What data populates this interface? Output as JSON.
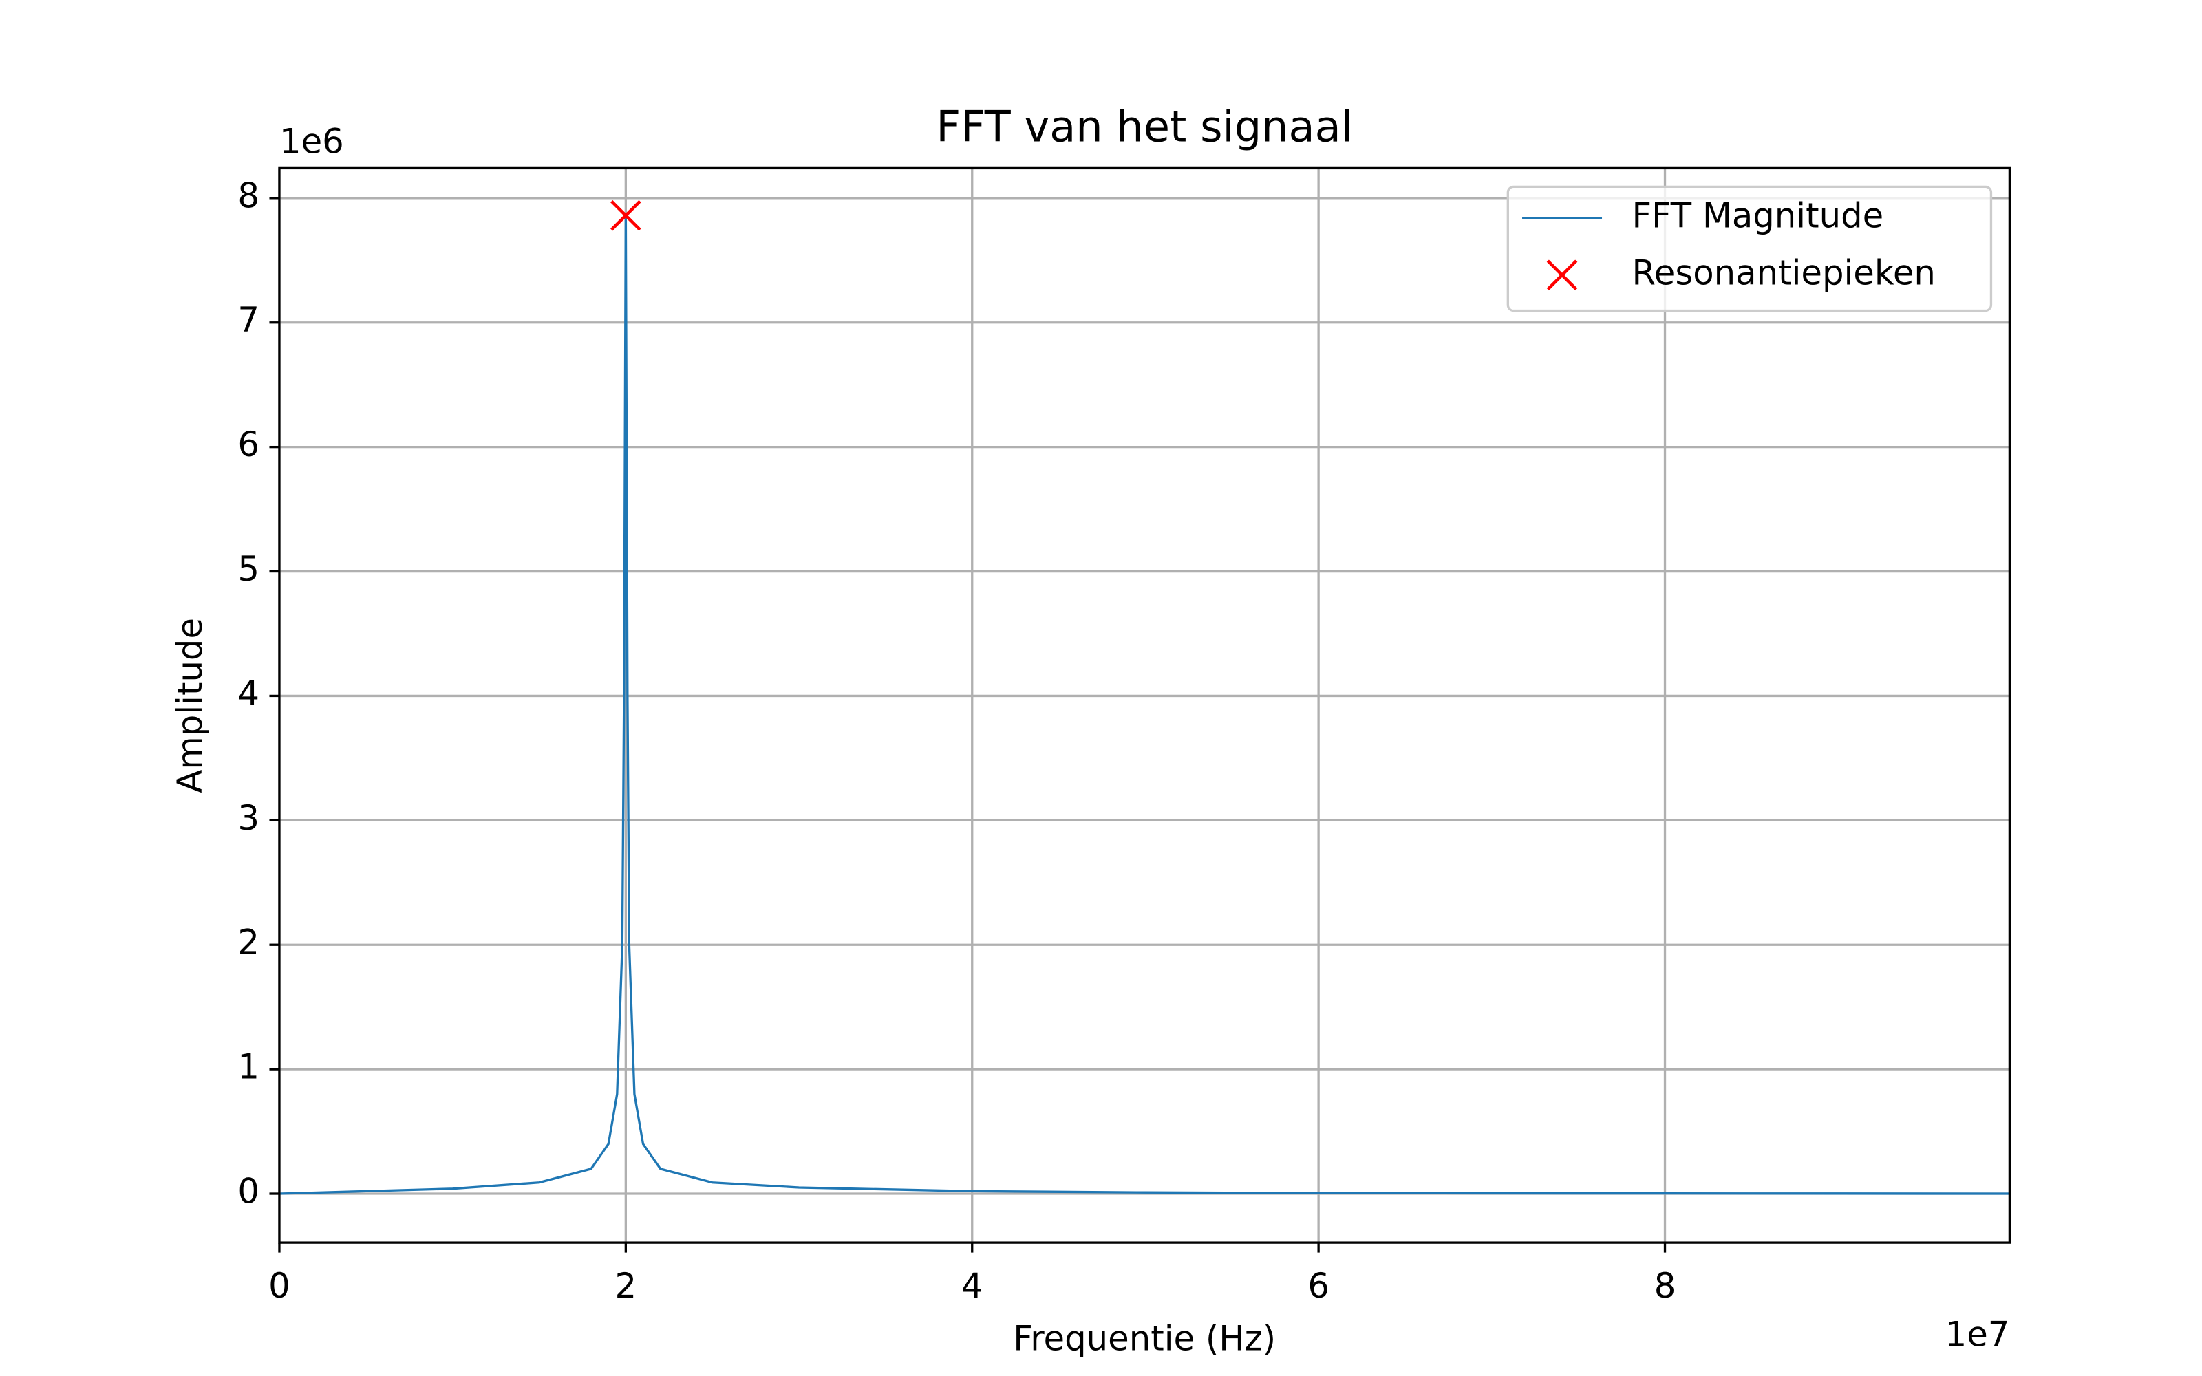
{
  "chart_data": {
    "type": "line",
    "title": "FFT van het signaal",
    "x_label": "Frequentie (Hz)",
    "y_label": "Amplitude",
    "x_offset_label": "1e7",
    "y_offset_label": "1e6",
    "xlim": [
      0,
      99900000
    ],
    "ylim": [
      -393000,
      8240000
    ],
    "xticks": [
      0,
      {
        "value": 20000000,
        "label": "2"
      },
      {
        "value": 40000000,
        "label": "4"
      },
      {
        "value": 60000000,
        "label": "6"
      },
      {
        "value": 80000000,
        "label": "8"
      }
    ],
    "yticks": [
      0,
      {
        "value": 1000000,
        "label": "1"
      },
      {
        "value": 2000000,
        "label": "2"
      },
      {
        "value": 3000000,
        "label": "3"
      },
      {
        "value": 4000000,
        "label": "4"
      },
      {
        "value": 5000000,
        "label": "5"
      },
      {
        "value": 6000000,
        "label": "6"
      },
      {
        "value": 7000000,
        "label": "7"
      },
      {
        "value": 8000000,
        "label": "8"
      }
    ],
    "grid": true,
    "legend": "upper right",
    "series": [
      {
        "name": "FFT Magnitude",
        "color": "#1f77b4",
        "x": [
          0,
          5000000,
          10000000,
          15000000,
          18000000,
          19000000,
          19500000,
          19800000,
          19900000,
          20000000,
          20100000,
          20200000,
          20500000,
          21000000,
          22000000,
          25000000,
          30000000,
          40000000,
          50000000,
          60000000,
          70000000,
          80000000,
          90000000,
          99900000
        ],
        "values": [
          0,
          20000,
          40000,
          90000,
          200000,
          400000,
          800000,
          2000000,
          4000000,
          7860000,
          4000000,
          2000000,
          800000,
          400000,
          200000,
          90000,
          50000,
          20000,
          10000,
          5000,
          3000,
          2000,
          1000,
          0
        ]
      },
      {
        "name": "Resonantiepieken",
        "color": "#ff0000",
        "marker": "x",
        "x": [
          20000000
        ],
        "values": [
          7860000
        ]
      }
    ]
  }
}
